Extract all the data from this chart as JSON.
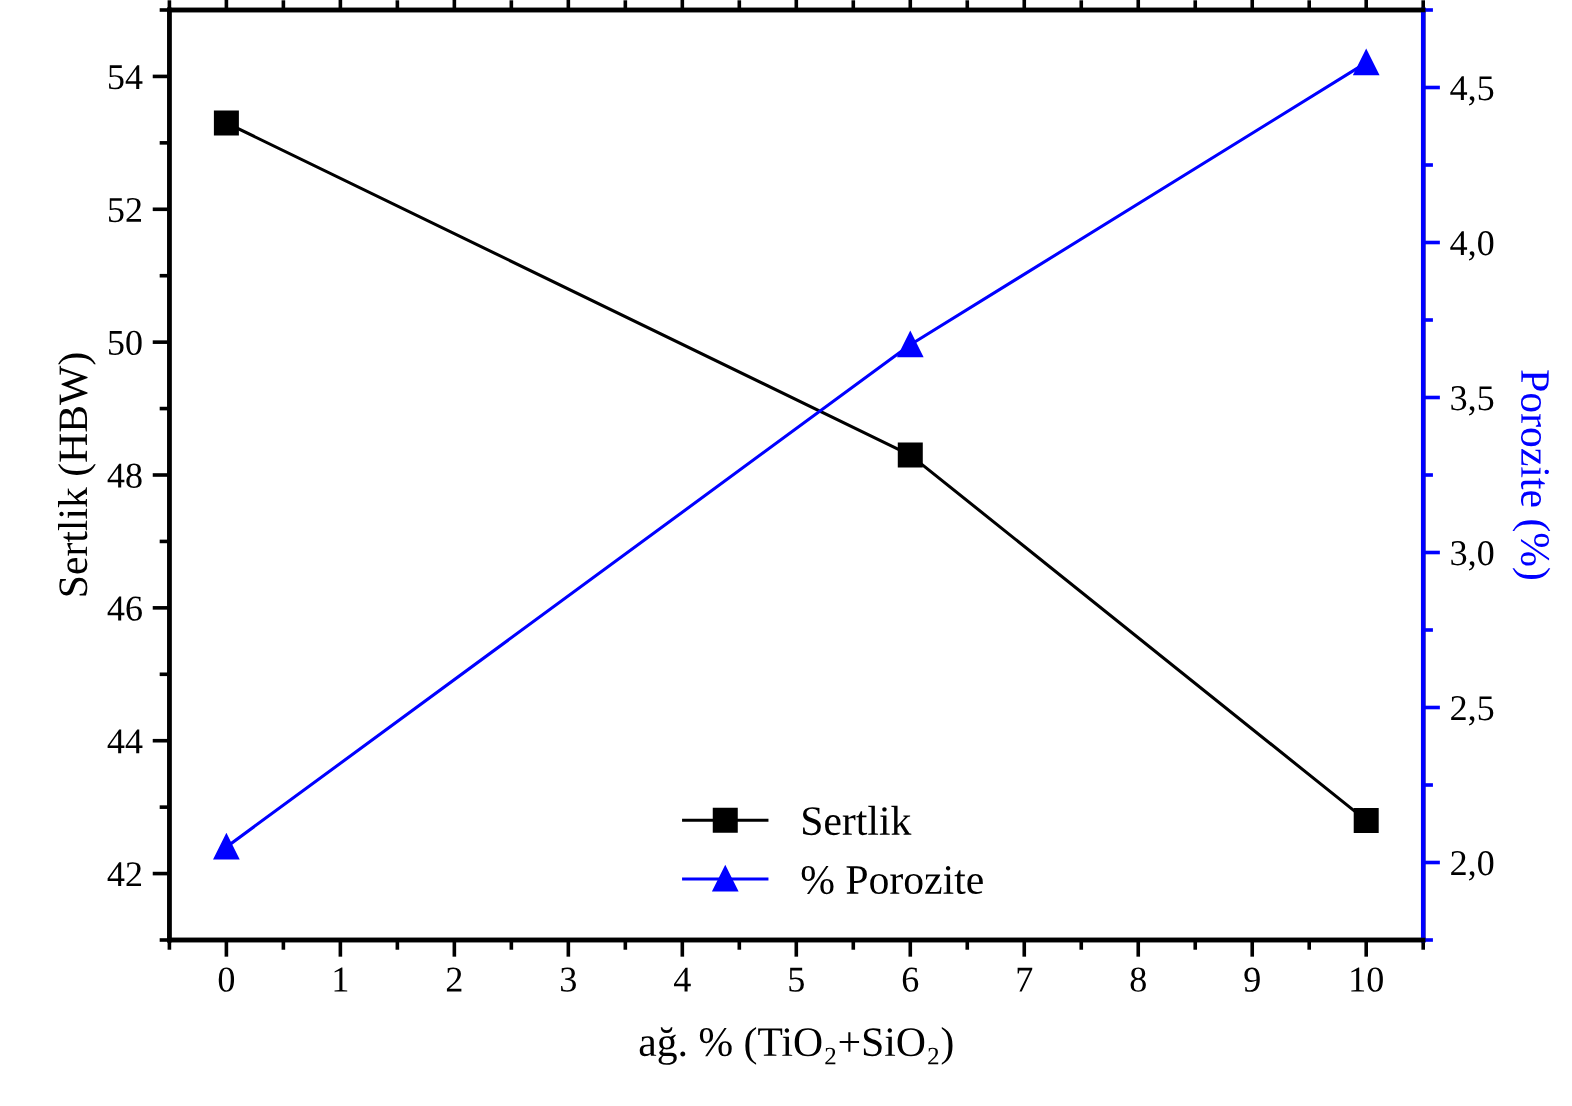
{
  "chart_data": {
    "type": "line",
    "xlabel": "ağ. % (TiO₂+SiO₂)",
    "ylabel": "Sertlik (HBW)",
    "y2label": "Porozite (%)",
    "x": [
      0,
      6,
      10
    ],
    "xlim": [
      -0.5,
      10.5
    ],
    "xticks": [
      0,
      1,
      2,
      3,
      4,
      5,
      6,
      7,
      8,
      9,
      10
    ],
    "ylim": [
      41,
      55
    ],
    "yticks": [
      42,
      44,
      46,
      48,
      50,
      52,
      54
    ],
    "y2lim": [
      1.75,
      4.75
    ],
    "y2ticks": [
      {
        "value": 2.0,
        "label": "2,0"
      },
      {
        "value": 2.5,
        "label": "2,5"
      },
      {
        "value": 3.0,
        "label": "3,0"
      },
      {
        "value": 3.5,
        "label": "3,5"
      },
      {
        "value": 4.0,
        "label": "4,0"
      },
      {
        "value": 4.5,
        "label": "4,5"
      }
    ],
    "series": [
      {
        "name": "Sertlik",
        "color": "#000000",
        "values": [
          53.3,
          48.3,
          42.8
        ],
        "marker": "square"
      },
      {
        "name": "% Porozite",
        "color": "#0000ff",
        "values": [
          2.05,
          3.67,
          4.58
        ],
        "marker": "triangle",
        "axis": "y2"
      }
    ],
    "line_style": "solid",
    "legend": "bottom",
    "grid": false
  }
}
